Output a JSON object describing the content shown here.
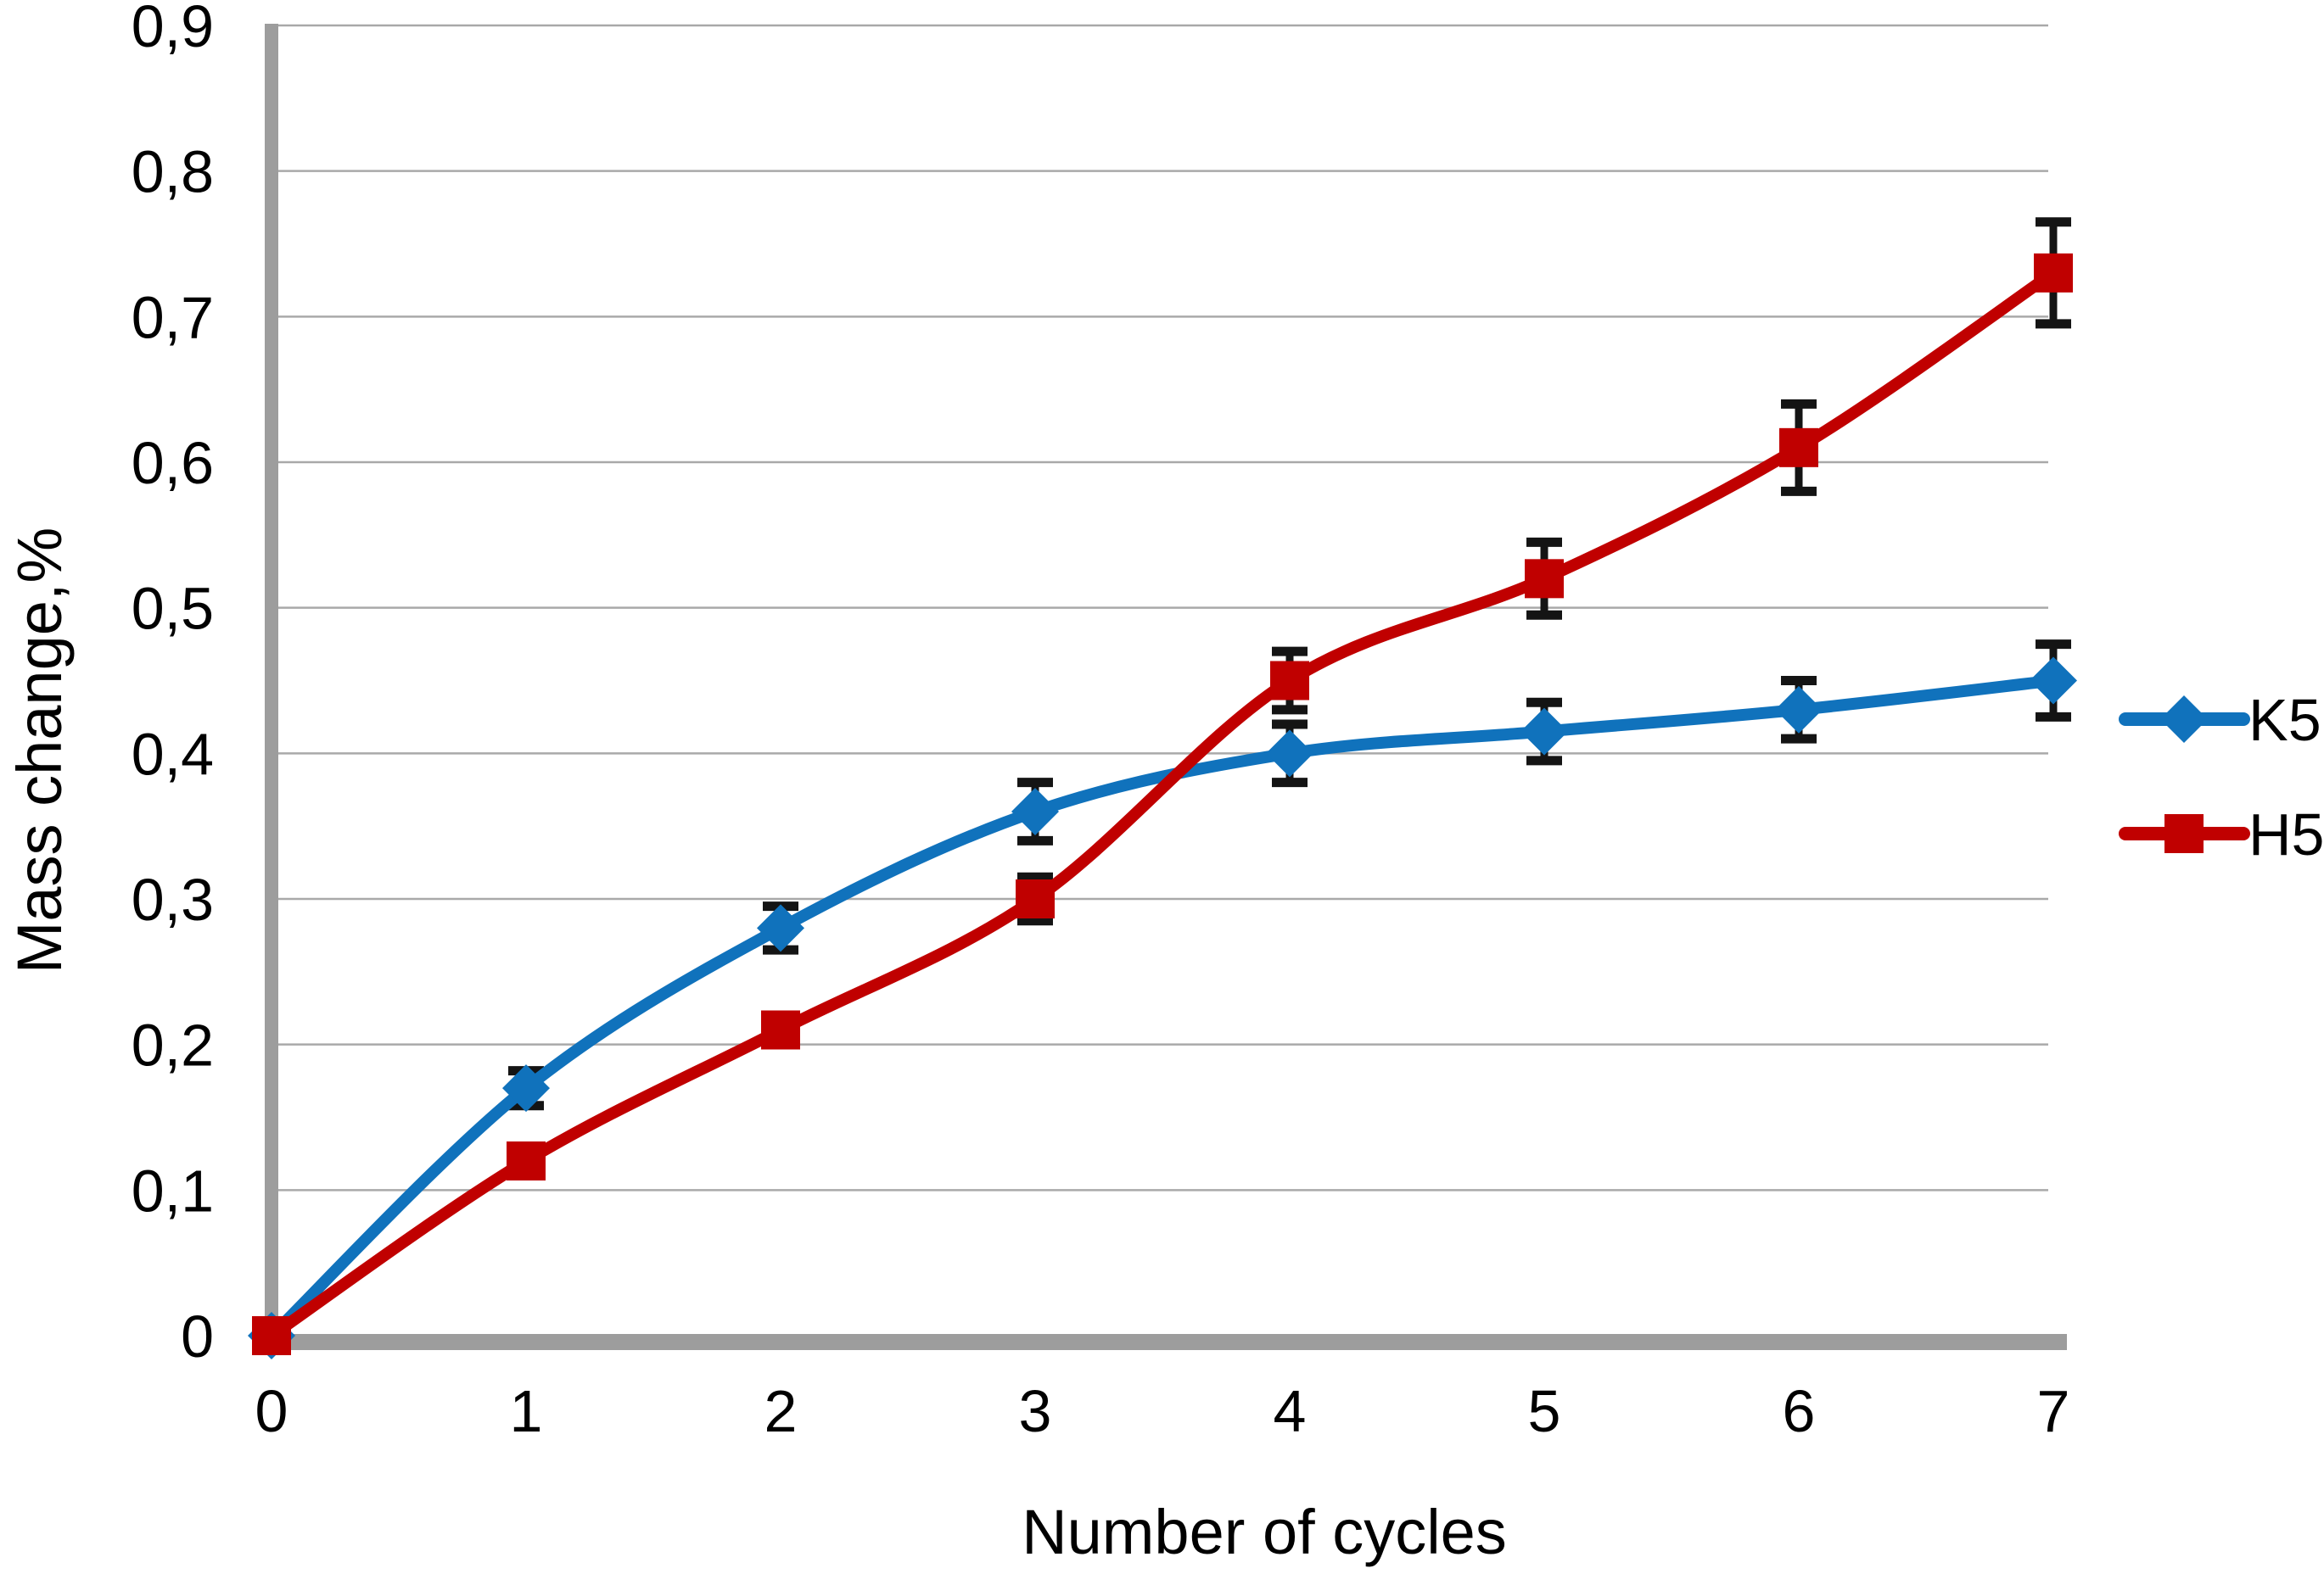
{
  "chart_data": {
    "type": "line",
    "title": "",
    "xlabel": "Number of cycles",
    "ylabel": "Mass change,%",
    "x": [
      0,
      1,
      2,
      3,
      4,
      5,
      6,
      7
    ],
    "xlim": [
      0,
      7
    ],
    "ylim": [
      0,
      0.9
    ],
    "ytick_step": 0.1,
    "decimal_separator": ",",
    "xtick_labels": [
      "0",
      "1",
      "2",
      "3",
      "4",
      "5",
      "6",
      "7"
    ],
    "ytick_labels": [
      "0",
      "0,1",
      "0,2",
      "0,3",
      "0,4",
      "0,5",
      "0,6",
      "0,7",
      "0,8",
      "0,9"
    ],
    "grid": "horizontal-only",
    "legend_position": "right",
    "series": [
      {
        "name": "K5",
        "color": "#1072BC",
        "marker": "diamond",
        "line_style": "smooth",
        "values": [
          0,
          0.17,
          0.28,
          0.36,
          0.4,
          0.415,
          0.43,
          0.45
        ],
        "error_bars": [
          0,
          0.012,
          0.015,
          0.02,
          0.02,
          0.02,
          0.02,
          0.025
        ]
      },
      {
        "name": "H5",
        "color": "#C00000",
        "marker": "square",
        "line_style": "smooth",
        "values": [
          0,
          0.12,
          0.21,
          0.3,
          0.45,
          0.52,
          0.61,
          0.73
        ],
        "error_bars": [
          0,
          0,
          0,
          0.015,
          0.02,
          0.025,
          0.03,
          0.035
        ]
      }
    ]
  },
  "styles": {
    "axis_color": "#9D9D9D",
    "grid_color": "#A9A9A9",
    "error_bar_color": "#141414",
    "text_color": "#000000",
    "background": "#FFFFFF"
  }
}
